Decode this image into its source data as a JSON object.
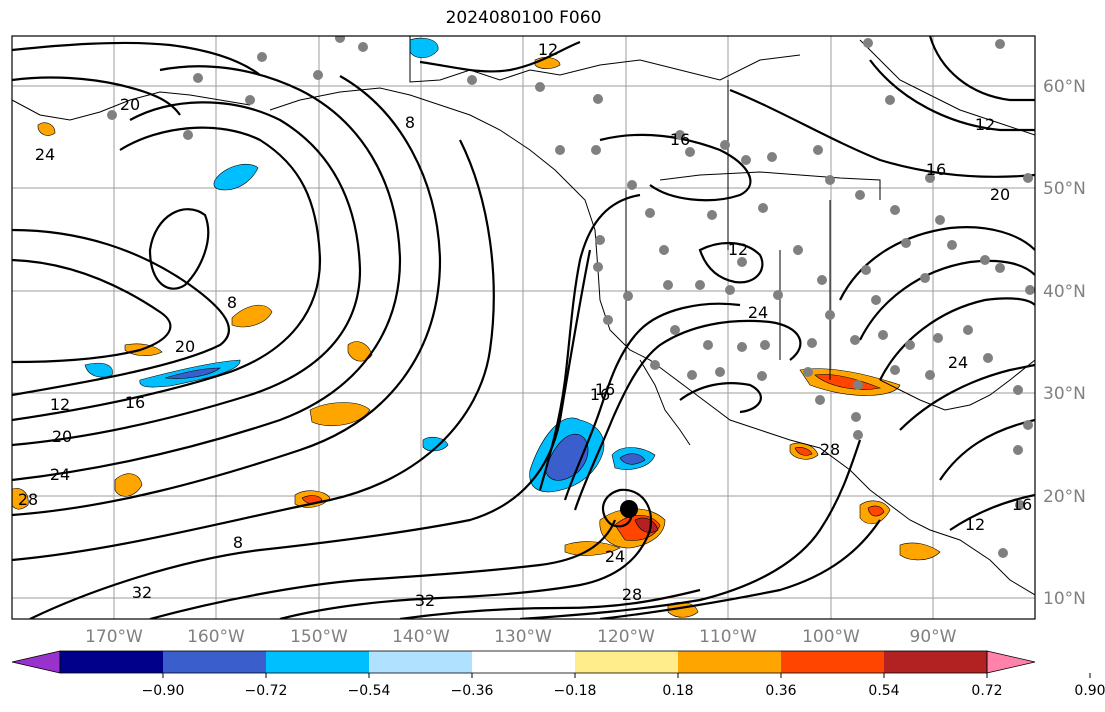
{
  "title": "2024080100 F060",
  "lon_labels": [
    "170°W",
    "160°W",
    "150°W",
    "140°W",
    "130°W",
    "120°W",
    "110°W",
    "100°W",
    "90°W"
  ],
  "lat_labels": [
    "60°N",
    "50°N",
    "40°N",
    "30°N",
    "20°N",
    "10°N"
  ],
  "colorbar": {
    "ticks": [
      "−0.90",
      "−0.72",
      "−0.54",
      "−0.36",
      "−0.18",
      "0.18",
      "0.36",
      "0.54",
      "0.72",
      "0.90"
    ],
    "colors": [
      "#9932cc",
      "#00008b",
      "#3a5fcd",
      "#00bfff",
      "#b0e2ff",
      "#ffffff",
      "#ffec8b",
      "#ffa500",
      "#ff4500",
      "#b22222",
      "#ff82ab"
    ]
  },
  "contour_labels": [
    "12",
    "16",
    "20",
    "24",
    "8",
    "12",
    "16",
    "20",
    "8",
    "12",
    "16",
    "20",
    "24",
    "28",
    "32",
    "8",
    "16",
    "24",
    "28",
    "32",
    "12",
    "16",
    "20",
    "24",
    "28",
    "12",
    "16",
    "24"
  ],
  "map": {
    "extent_lon": [
      -180,
      -80
    ],
    "extent_lat": [
      8,
      65
    ],
    "storm_center": {
      "lon": -120.0,
      "lat": 18.6
    }
  }
}
